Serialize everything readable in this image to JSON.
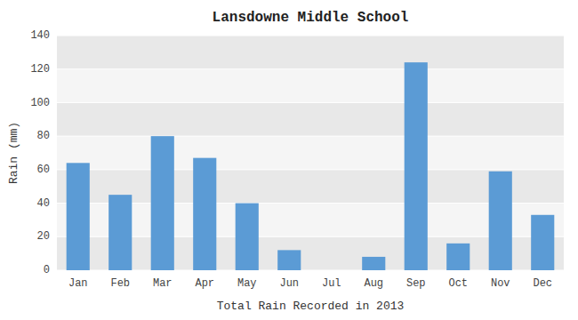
{
  "chart_data": {
    "type": "bar",
    "title": "Lansdowne Middle School",
    "xlabel": "Total Rain Recorded in 2013",
    "ylabel": "Rain (mm)",
    "categories": [
      "Jan",
      "Feb",
      "Mar",
      "Apr",
      "May",
      "Jun",
      "Jul",
      "Aug",
      "Sep",
      "Oct",
      "Nov",
      "Dec"
    ],
    "values": [
      64,
      45,
      80,
      67,
      40,
      12,
      0,
      8,
      124,
      16,
      59,
      33
    ],
    "color": "#5B9BD5",
    "ylim": [
      0,
      140
    ],
    "yticks": [
      0,
      20,
      40,
      60,
      80,
      100,
      120,
      140
    ],
    "grid": true
  }
}
